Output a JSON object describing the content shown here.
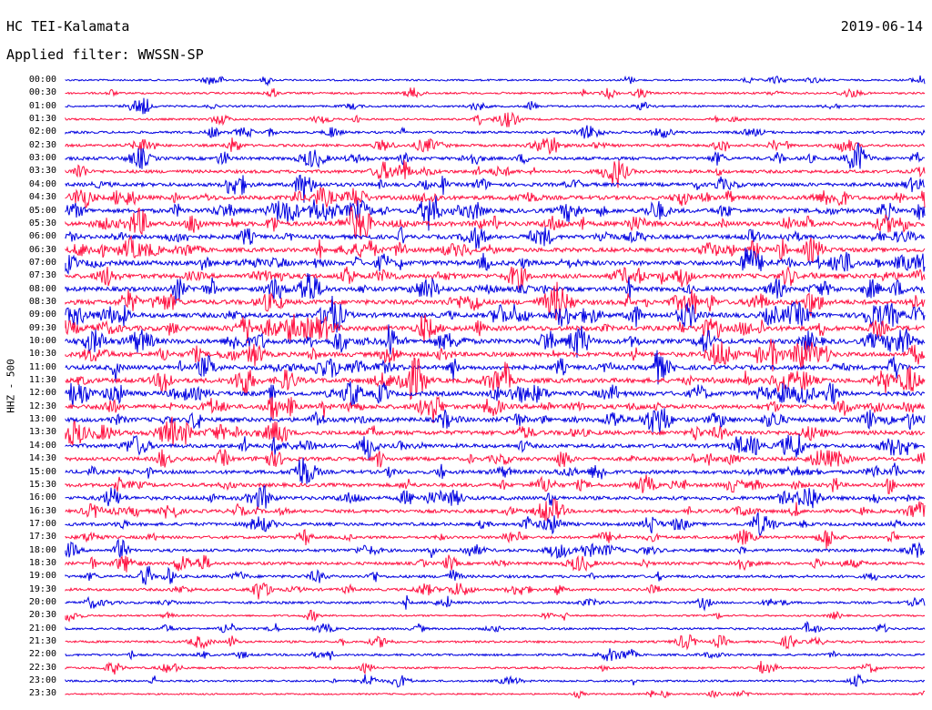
{
  "header": {
    "station": "HC TEI-Kalamata",
    "date": "2019-06-14",
    "filter": "Applied filter: WWSSN-SP"
  },
  "colors": {
    "odd_row": "#0000e0",
    "even_row": "#ff1040",
    "background": "#ffffff"
  },
  "chart_data": {
    "type": "line",
    "subtype": "helicorder",
    "title": "HC TEI-Kalamata",
    "ylabel": "HHZ - 500",
    "xlabel": "",
    "grid": false,
    "legend": "none",
    "row_minutes": 30,
    "row_labels": [
      "00:00",
      "00:30",
      "01:00",
      "01:30",
      "02:00",
      "02:30",
      "03:00",
      "03:30",
      "04:00",
      "04:30",
      "05:00",
      "05:30",
      "06:00",
      "06:30",
      "07:00",
      "07:30",
      "08:00",
      "08:30",
      "09:00",
      "09:30",
      "10:00",
      "10:30",
      "11:00",
      "11:30",
      "12:00",
      "12:30",
      "13:00",
      "13:30",
      "14:00",
      "14:30",
      "15:00",
      "15:30",
      "16:00",
      "16:30",
      "17:00",
      "17:30",
      "18:00",
      "18:30",
      "19:00",
      "19:30",
      "20:00",
      "20:30",
      "21:00",
      "21:30",
      "22:00",
      "22:30",
      "23:00",
      "23:30"
    ],
    "row_colors": [
      "blue",
      "red"
    ],
    "activity_level": [
      0.15,
      0.2,
      0.2,
      0.2,
      0.3,
      0.35,
      0.5,
      0.5,
      0.6,
      0.7,
      0.75,
      0.8,
      0.7,
      0.75,
      0.85,
      0.8,
      0.75,
      0.85,
      0.85,
      0.9,
      0.85,
      0.8,
      0.8,
      0.85,
      0.8,
      0.75,
      0.75,
      0.75,
      0.65,
      0.6,
      0.6,
      0.6,
      0.6,
      0.55,
      0.5,
      0.4,
      0.45,
      0.45,
      0.4,
      0.35,
      0.3,
      0.15,
      0.25,
      0.25,
      0.25,
      0.2,
      0.2,
      0.1
    ]
  }
}
